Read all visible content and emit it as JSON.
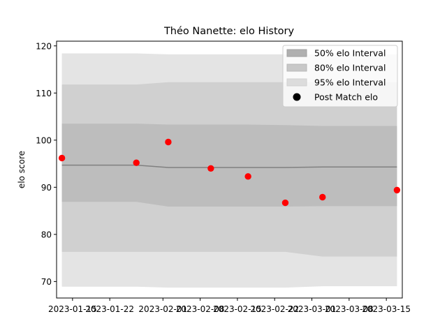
{
  "chart_data": {
    "type": "line",
    "title": "Théo Nanette: elo History",
    "xlabel": "",
    "ylabel": "elo score",
    "xlim": [
      "2023-01-12",
      "2023-03-18"
    ],
    "ylim": [
      66.5,
      121
    ],
    "yticks": [
      70,
      80,
      90,
      100,
      110,
      120
    ],
    "xticks": [
      "2023-01-15",
      "2023-01-22",
      "2023-02-01",
      "2023-02-08",
      "2023-02-15",
      "2023-02-22",
      "2023-03-01",
      "2023-03-08",
      "2023-03-15"
    ],
    "grid": false,
    "legend_position": "top-right",
    "colors": {
      "band50": "#bdbdbd",
      "band80": "#d0d0d0",
      "band95": "#e4e4e4",
      "mean_line": "#808080",
      "points": "#ff0000",
      "legend_marker": "#000000"
    },
    "bands": [
      {
        "name": "95% elo Interval",
        "x": [
          "2023-01-13",
          "2023-01-27",
          "2023-02-02",
          "2023-02-10",
          "2023-02-17",
          "2023-02-24",
          "2023-03-03",
          "2023-03-17"
        ],
        "lower": [
          68.9,
          68.9,
          68.7,
          68.7,
          68.7,
          68.7,
          69.0,
          69.0
        ],
        "upper": [
          118.4,
          118.4,
          118.2,
          118.2,
          118.2,
          118.2,
          118.2,
          118.2
        ]
      },
      {
        "name": "80% elo Interval",
        "x": [
          "2023-01-13",
          "2023-01-27",
          "2023-02-02",
          "2023-02-10",
          "2023-02-17",
          "2023-02-24",
          "2023-03-03",
          "2023-03-17"
        ],
        "lower": [
          76.3,
          76.3,
          76.3,
          76.3,
          76.3,
          76.3,
          75.3,
          75.3
        ],
        "upper": [
          111.8,
          111.8,
          112.3,
          112.3,
          112.3,
          112.3,
          112.3,
          112.3
        ]
      },
      {
        "name": "50% elo Interval",
        "x": [
          "2023-01-13",
          "2023-01-27",
          "2023-02-02",
          "2023-02-10",
          "2023-02-17",
          "2023-02-24",
          "2023-03-03",
          "2023-03-17"
        ],
        "lower": [
          86.9,
          86.9,
          85.9,
          85.9,
          85.9,
          85.9,
          86.0,
          86.0
        ],
        "upper": [
          103.5,
          103.5,
          103.3,
          103.3,
          103.3,
          103.2,
          103.0,
          103.0
        ]
      }
    ],
    "mean": {
      "x": [
        "2023-01-13",
        "2023-01-27",
        "2023-02-02",
        "2023-02-10",
        "2023-02-17",
        "2023-02-24",
        "2023-03-03",
        "2023-03-17"
      ],
      "y": [
        94.7,
        94.7,
        94.2,
        94.2,
        94.2,
        94.2,
        94.3,
        94.3
      ]
    },
    "series": [
      {
        "name": "Post Match elo",
        "x": [
          "2023-01-13",
          "2023-01-27",
          "2023-02-02",
          "2023-02-10",
          "2023-02-17",
          "2023-02-24",
          "2023-03-03",
          "2023-03-17"
        ],
        "y": [
          96.2,
          95.2,
          99.6,
          94.0,
          92.3,
          86.7,
          87.9,
          89.4
        ]
      }
    ],
    "legend": [
      {
        "label": "50% elo Interval",
        "kind": "band50"
      },
      {
        "label": "80% elo Interval",
        "kind": "band80"
      },
      {
        "label": "95% elo Interval",
        "kind": "band95"
      },
      {
        "label": "Post Match elo",
        "kind": "marker"
      }
    ]
  }
}
